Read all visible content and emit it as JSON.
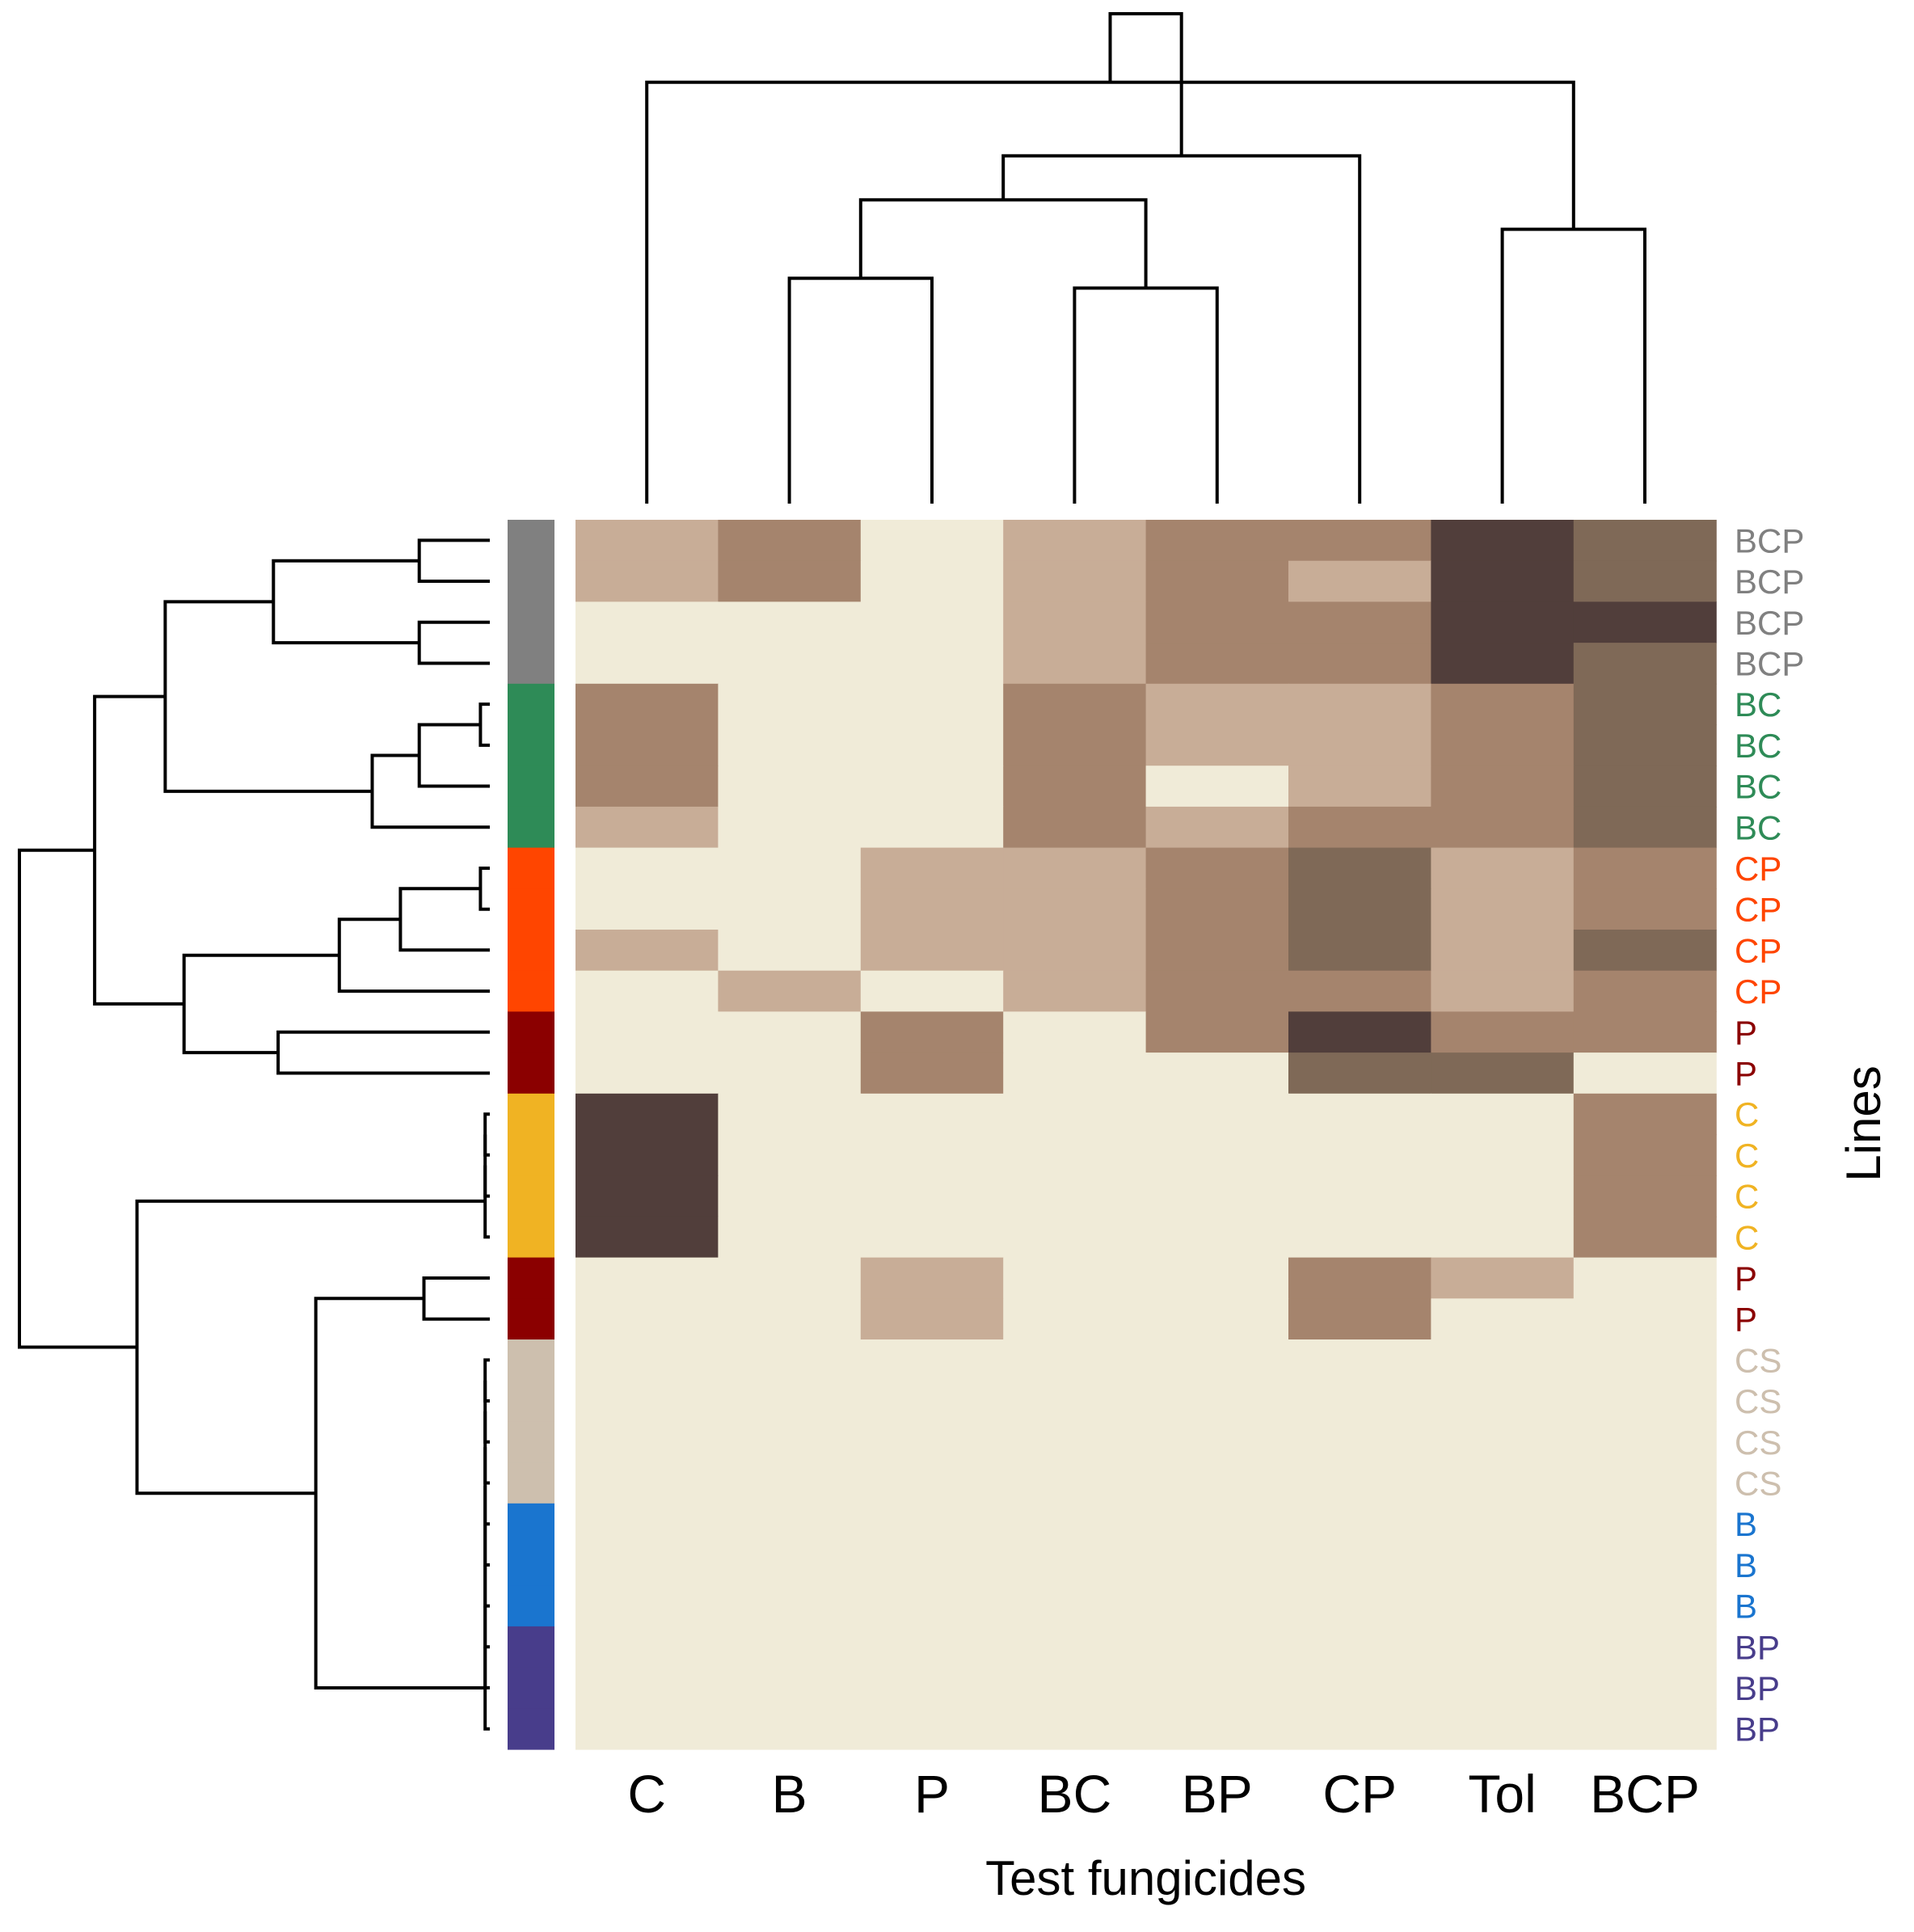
{
  "chart_data": {
    "type": "heatmap",
    "title": "",
    "xlabel": "Test fungicides",
    "ylabel": "Lines",
    "columns": [
      "C",
      "B",
      "P",
      "BC",
      "BP",
      "CP",
      "Tol",
      "BCP"
    ],
    "rows": [
      "BCP",
      "BCP",
      "BCP",
      "BCP",
      "BC",
      "BC",
      "BC",
      "BC",
      "CP",
      "CP",
      "CP",
      "CP",
      "P",
      "P",
      "C",
      "C",
      "C",
      "C",
      "P",
      "P",
      "CS",
      "CS",
      "CS",
      "CS",
      "B",
      "B",
      "B",
      "BP",
      "BP",
      "BP"
    ],
    "level_scale": "0 = none (lightest) to 4 = highest (darkest)",
    "values": [
      [
        1,
        2,
        0,
        1,
        2,
        2,
        4,
        3
      ],
      [
        1,
        2,
        0,
        1,
        2,
        1,
        4,
        3
      ],
      [
        0,
        0,
        0,
        1,
        2,
        2,
        4,
        4
      ],
      [
        0,
        0,
        0,
        1,
        2,
        2,
        4,
        3
      ],
      [
        2,
        0,
        0,
        2,
        1,
        1,
        2,
        3
      ],
      [
        2,
        0,
        0,
        2,
        1,
        1,
        2,
        3
      ],
      [
        2,
        0,
        0,
        2,
        0,
        1,
        2,
        3
      ],
      [
        1,
        0,
        0,
        2,
        1,
        2,
        2,
        3
      ],
      [
        0,
        0,
        1,
        1,
        2,
        3,
        1,
        2
      ],
      [
        0,
        0,
        1,
        1,
        2,
        3,
        1,
        2
      ],
      [
        1,
        0,
        1,
        1,
        2,
        3,
        1,
        3
      ],
      [
        0,
        1,
        0,
        1,
        2,
        2,
        1,
        2
      ],
      [
        0,
        0,
        2,
        0,
        2,
        4,
        2,
        2
      ],
      [
        0,
        0,
        2,
        0,
        0,
        3,
        3,
        0
      ],
      [
        4,
        0,
        0,
        0,
        0,
        0,
        0,
        2
      ],
      [
        4,
        0,
        0,
        0,
        0,
        0,
        0,
        2
      ],
      [
        4,
        0,
        0,
        0,
        0,
        0,
        0,
        2
      ],
      [
        4,
        0,
        0,
        0,
        0,
        0,
        0,
        2
      ],
      [
        0,
        0,
        1,
        0,
        0,
        2,
        1,
        0
      ],
      [
        0,
        0,
        1,
        0,
        0,
        2,
        0,
        0
      ],
      [
        0,
        0,
        0,
        0,
        0,
        0,
        0,
        0
      ],
      [
        0,
        0,
        0,
        0,
        0,
        0,
        0,
        0
      ],
      [
        0,
        0,
        0,
        0,
        0,
        0,
        0,
        0
      ],
      [
        0,
        0,
        0,
        0,
        0,
        0,
        0,
        0
      ],
      [
        0,
        0,
        0,
        0,
        0,
        0,
        0,
        0
      ],
      [
        0,
        0,
        0,
        0,
        0,
        0,
        0,
        0
      ],
      [
        0,
        0,
        0,
        0,
        0,
        0,
        0,
        0
      ],
      [
        0,
        0,
        0,
        0,
        0,
        0,
        0,
        0
      ],
      [
        0,
        0,
        0,
        0,
        0,
        0,
        0,
        0
      ],
      [
        0,
        0,
        0,
        0,
        0,
        0,
        0,
        0
      ]
    ],
    "level_colors": [
      "#f0ebd8",
      "#c8ad97",
      "#a5846d",
      "#7f6957",
      "#513e3b"
    ],
    "line_colors": {
      "BCP": "#808080",
      "BC": "#2e8b57",
      "CP": "#ff4500",
      "P": "#8b0000",
      "C": "#f0b323",
      "CS": "#cdbfae",
      "B": "#1a75cf",
      "BP": "#483d8b"
    },
    "column_dendrogram": {
      "leaf_order": [
        "C",
        "B",
        "P",
        "BC",
        "BP",
        "CP",
        "Tol",
        "BCP"
      ],
      "merges": [
        [
          1,
          2,
          0.46
        ],
        [
          3,
          4,
          0.44
        ],
        [
          6,
          7,
          0.56
        ],
        [
          8,
          9,
          0.62
        ],
        [
          0,
          10,
          0.86
        ],
        [
          5,
          11,
          0.71
        ],
        [
          12,
          13,
          1.0
        ]
      ]
    },
    "row_dendrogram": {
      "merges": [
        [
          0,
          1,
          0.15
        ],
        [
          2,
          3,
          0.15
        ],
        [
          30,
          31,
          0.46
        ],
        [
          4,
          5,
          0.02
        ],
        [
          33,
          6,
          0.15
        ],
        [
          34,
          7,
          0.25
        ],
        [
          32,
          35,
          0.69
        ],
        [
          8,
          9,
          0.02
        ],
        [
          37,
          10,
          0.19
        ],
        [
          38,
          11,
          0.32
        ],
        [
          12,
          13,
          0.45
        ],
        [
          39,
          40,
          0.65
        ],
        [
          36,
          41,
          0.84
        ],
        [
          14,
          15,
          0.01
        ],
        [
          43,
          16,
          0.01
        ],
        [
          44,
          17,
          0.01
        ],
        [
          18,
          19,
          0.14
        ],
        [
          20,
          21,
          0.01
        ],
        [
          47,
          22,
          0.01
        ],
        [
          48,
          23,
          0.01
        ],
        [
          49,
          24,
          0.01
        ],
        [
          50,
          25,
          0.01
        ],
        [
          51,
          26,
          0.01
        ],
        [
          52,
          27,
          0.01
        ],
        [
          53,
          28,
          0.01
        ],
        [
          54,
          29,
          0.01
        ],
        [
          46,
          55,
          0.37
        ],
        [
          45,
          56,
          0.75
        ],
        [
          42,
          57,
          1.0
        ]
      ]
    }
  }
}
